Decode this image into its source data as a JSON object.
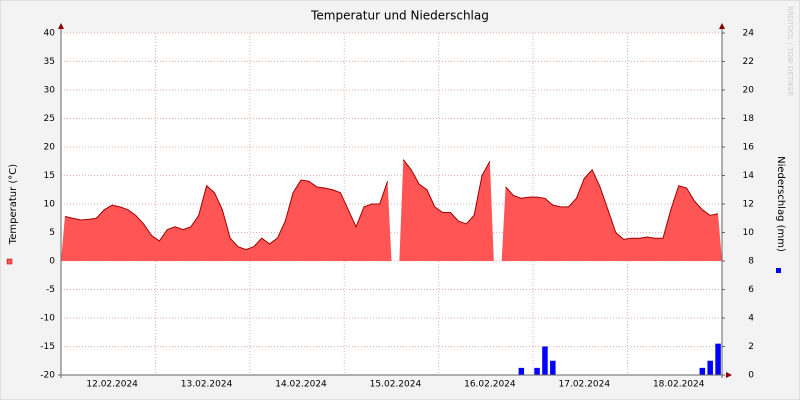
{
  "chart_data": {
    "type": "area-bar",
    "title": "Temperatur und Niederschlag",
    "watermark": "RRDTOOL / TOBI OETIKER",
    "categories": [
      null,
      null,
      null,
      null,
      null,
      null,
      "12.02.2024",
      null,
      null,
      null,
      null,
      null,
      null,
      null,
      null,
      null,
      null,
      null,
      "13.02.2024",
      null,
      null,
      null,
      null,
      null,
      null,
      null,
      null,
      null,
      null,
      null,
      "14.02.2024",
      null,
      null,
      null,
      null,
      null,
      null,
      null,
      null,
      null,
      null,
      null,
      "15.02.2024",
      null,
      null,
      null,
      null,
      null,
      null,
      null,
      null,
      null,
      null,
      null,
      "16.02.2024",
      null,
      null,
      null,
      null,
      null,
      null,
      null,
      null,
      null,
      null,
      null,
      "17.02.2024",
      null,
      null,
      null,
      null,
      null,
      null,
      null,
      null,
      null,
      null,
      null,
      "18.02.2024",
      null,
      null,
      null,
      null,
      null
    ],
    "series": [
      {
        "name": "Temperatur (°C)",
        "color": "#ff5555",
        "values": [
          7.8,
          7.5,
          7.2,
          7.3,
          7.5,
          9,
          9.8,
          9.5,
          9,
          8,
          6.5,
          4.5,
          3.5,
          5.5,
          6,
          5.5,
          6,
          8,
          13.2,
          12,
          9,
          4,
          2.5,
          2,
          2.5,
          4,
          3,
          4,
          7,
          12,
          14.2,
          14,
          13,
          12.8,
          12.5,
          12,
          9,
          6,
          9.5,
          10,
          10,
          14,
          null,
          17.8,
          16,
          13.5,
          12.5,
          9.5,
          8.5,
          8.5,
          7,
          6.5,
          8,
          15,
          17.5,
          null,
          13,
          11.5,
          11,
          11.2,
          11.2,
          11,
          9.8,
          9.5,
          9.5,
          11,
          14.5,
          16,
          13,
          9,
          5,
          3.8,
          4,
          4,
          4.2,
          4,
          4,
          9,
          13.2,
          12.8,
          10.5,
          9,
          8,
          8.3
        ]
      },
      {
        "name": "Niederschlag (mm)",
        "color": "#0000ff",
        "axis": "y2",
        "values": [
          0,
          0,
          0,
          0,
          0,
          0,
          0,
          0,
          0,
          0,
          0,
          0,
          0,
          0,
          0,
          0,
          0,
          0,
          0,
          0,
          0,
          0,
          0,
          0,
          0,
          0,
          0,
          0,
          0,
          0,
          0,
          0,
          0,
          0,
          0,
          0,
          0,
          0,
          0,
          0,
          0,
          0,
          0,
          0,
          0,
          0,
          0,
          0,
          0,
          0,
          0,
          0,
          0,
          0,
          0,
          0,
          0,
          0,
          0.5,
          0,
          0.5,
          2,
          1,
          0,
          0,
          0,
          0,
          0,
          0,
          0,
          0,
          0,
          0,
          0,
          0,
          0,
          0,
          0,
          0,
          0,
          0,
          0.5,
          1,
          2.2
        ]
      }
    ],
    "ylim": [
      -20,
      40
    ],
    "yticks": [
      -20,
      -15,
      -10,
      -5,
      0,
      5,
      10,
      15,
      20,
      25,
      30,
      35,
      40
    ],
    "y2lim": [
      0,
      24
    ],
    "y2ticks": [
      0,
      2,
      4,
      6,
      8,
      10,
      12,
      14,
      16,
      18,
      20,
      22,
      24
    ],
    "grid": true
  }
}
